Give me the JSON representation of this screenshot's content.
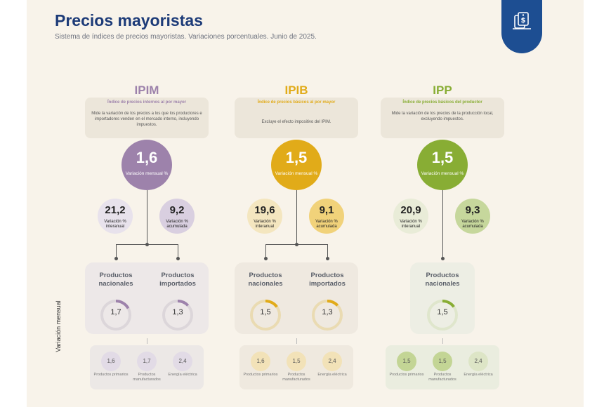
{
  "header": {
    "title": "Precios mayoristas",
    "subtitle": "Sistema de índices de precios mayoristas. Variaciones porcentuales. Junio de 2025."
  },
  "side_label": "Variación mensual",
  "colors": {
    "ipim": "#9d82ab",
    "ipib": "#e1ab19",
    "ipp": "#88ad34",
    "navy": "#1d3b78"
  },
  "indices": [
    {
      "name": "IPIM",
      "subtitle": "Índice de precios internos al por mayor",
      "description": "Mide la variación de los precios a los que los productores e importadores venden en el mercado interno, incluyendo impuestos.",
      "monthly": {
        "value": "1,6",
        "label": "Variación mensual %"
      },
      "interannual": {
        "value": "21,2",
        "label": "Variación % interanual"
      },
      "cumulative": {
        "value": "9,2",
        "label": "Variación % acumulada"
      },
      "products": [
        {
          "label": "Productos nacionales",
          "value": "1,7",
          "progress": 1.7
        },
        {
          "label": "Productos importados",
          "value": "1,3",
          "progress": 1.3
        }
      ],
      "components": [
        {
          "value": "1,6",
          "label": "Productos primarios"
        },
        {
          "value": "1,7",
          "label": "Productos manufacturados"
        },
        {
          "value": "2,4",
          "label": "Energía eléctrica"
        }
      ]
    },
    {
      "name": "IPIB",
      "subtitle": "Índice de precios básicos al por mayor",
      "description": "Excluye el efecto impositivo del IPIM.",
      "monthly": {
        "value": "1,5",
        "label": "Variación mensual %"
      },
      "interannual": {
        "value": "19,6",
        "label": "Variación % interanual"
      },
      "cumulative": {
        "value": "9,1",
        "label": "Variación % acumulada"
      },
      "products": [
        {
          "label": "Productos nacionales",
          "value": "1,5",
          "progress": 1.5
        },
        {
          "label": "Productos importados",
          "value": "1,3",
          "progress": 1.3
        }
      ],
      "components": [
        {
          "value": "1,6",
          "label": "Productos primarios"
        },
        {
          "value": "1,5",
          "label": "Productos manufacturados"
        },
        {
          "value": "2,4",
          "label": "Energía eléctrica"
        }
      ]
    },
    {
      "name": "IPP",
      "subtitle": "Índice de precios básicos del productor",
      "description": "Mide la variación de los precios de la producción local, excluyendo impuestos.",
      "monthly": {
        "value": "1,5",
        "label": "Variación mensual %"
      },
      "interannual": {
        "value": "20,9",
        "label": "Variación % interanual"
      },
      "cumulative": {
        "value": "9,3",
        "label": "Variación % acumulada"
      },
      "products": [
        {
          "label": "Productos nacionales",
          "value": "1,5",
          "progress": 1.5
        }
      ],
      "components": [
        {
          "value": "1,5",
          "label": "Productos primarios"
        },
        {
          "value": "1,5",
          "label": "Productos manufacturados"
        },
        {
          "value": "2,4",
          "label": "Energía eléctrica"
        }
      ]
    }
  ]
}
